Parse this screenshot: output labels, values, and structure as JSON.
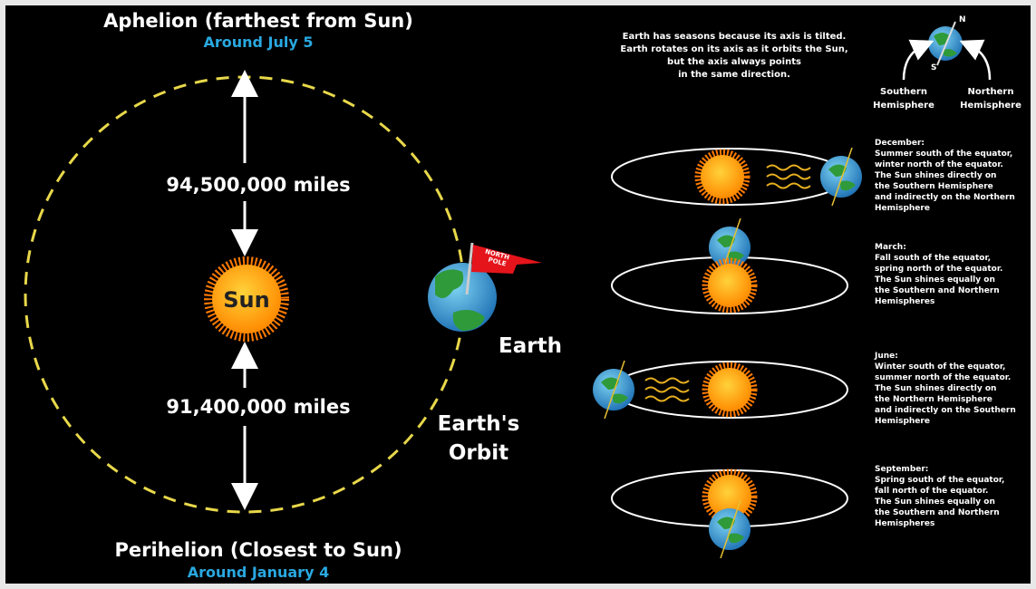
{
  "left": {
    "aphelion": {
      "title": "Aphelion (farthest from Sun)",
      "date": "Around July 5"
    },
    "perihelion": {
      "title": "Perihelion (Closest to Sun)",
      "date": "Around January 4"
    },
    "distance_far": "94,500,000 miles",
    "distance_near": "91,400,000 miles",
    "sun": "Sun",
    "earth": "Earth",
    "flag": [
      "NORTH",
      "POLE"
    ],
    "orbit": [
      "Earth's",
      "Orbit"
    ]
  },
  "right": {
    "intro": [
      "Earth has seasons because its axis is tilted.",
      "Earth rotates on its axis as it orbits the Sun,",
      "but the axis always points",
      "in the same direction."
    ],
    "axis": {
      "north": "N",
      "south": "S"
    },
    "southern": [
      "Southern",
      "Hemisphere"
    ],
    "northern": [
      "Northern",
      "Hemisphere"
    ],
    "seasons": [
      {
        "heading": "December:",
        "lines": [
          "Summer south of the equator,",
          "winter north of the equator.",
          "The Sun shines directly on",
          "the Southern Hemisphere",
          "and indirectly on the Northern",
          "Hemisphere"
        ]
      },
      {
        "heading": "March:",
        "lines": [
          "Fall south of the equator,",
          "spring north of the equator.",
          "The Sun shines equally on",
          "the Southern and Northern",
          "Hemispheres"
        ]
      },
      {
        "heading": "June:",
        "lines": [
          "Winter south of the equator,",
          "summer north of the equator.",
          "The Sun shines directly on",
          "the Northern Hemisphere",
          "and indirectly on the Southern",
          "Hemisphere"
        ]
      },
      {
        "heading": "September:",
        "lines": [
          "Spring south of the equator,",
          "fall north of the equator.",
          "The Sun shines equally on",
          "the Southern and Northern",
          "Hemispheres"
        ]
      }
    ]
  }
}
